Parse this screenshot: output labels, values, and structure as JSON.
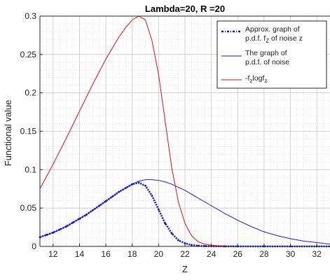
{
  "chart_data": {
    "type": "line",
    "title": "Lambda=20, R =20",
    "xlabel": "Z",
    "ylabel": "Functional value",
    "xlim": [
      11,
      33
    ],
    "ylim": [
      0,
      0.3
    ],
    "x_ticks": [
      12,
      14,
      16,
      18,
      20,
      22,
      24,
      26,
      28,
      30,
      32
    ],
    "y_ticks": [
      0,
      0.05,
      0.1,
      0.15,
      0.2,
      0.25,
      0.3
    ],
    "x_tick_labels": [
      "12",
      "14",
      "16",
      "18",
      "20",
      "22",
      "24",
      "26",
      "28",
      "30",
      "32"
    ],
    "y_tick_labels": [
      "0",
      "0.05",
      "0.1",
      "0.15",
      "0.2",
      "0.25",
      "0.3"
    ],
    "grid": true,
    "minor_grid": true,
    "legend_position": "top-right",
    "series": [
      {
        "name": "Approx. graph of p.d.f.  f_Z of noise z",
        "legend_lines": [
          "Approx. graph of",
          "p.d.f.  f",
          "Z",
          " of noise z"
        ],
        "color": "#1010d0",
        "style": "dash-dot-points",
        "x": [
          11,
          11.5,
          12,
          12.5,
          13,
          13.5,
          14,
          14.5,
          15,
          15.5,
          16,
          16.5,
          17,
          17.5,
          18,
          18.5,
          19,
          19.5,
          20,
          20.5,
          21,
          21.5,
          22,
          22.5,
          23,
          23.5,
          24,
          25,
          26,
          28,
          30,
          32,
          33
        ],
        "y": [
          0.012,
          0.015,
          0.018,
          0.022,
          0.026,
          0.031,
          0.036,
          0.041,
          0.047,
          0.053,
          0.059,
          0.065,
          0.071,
          0.076,
          0.081,
          0.083,
          0.079,
          0.066,
          0.048,
          0.03,
          0.017,
          0.008,
          0.004,
          0.0018,
          0.0008,
          0.0004,
          0.0002,
          0.0001,
          0,
          0,
          0,
          0,
          0
        ]
      },
      {
        "name": "The graph of p.d.f. of noise",
        "legend_lines": [
          "The graph of",
          "p.d.f. of noise"
        ],
        "color": "#1a1ad6",
        "style": "solid",
        "x": [
          11,
          12,
          13,
          14,
          15,
          16,
          17,
          18,
          18.5,
          19,
          19.5,
          20,
          20.5,
          21,
          22,
          23,
          24,
          25,
          26,
          27,
          28,
          29,
          30,
          31,
          32,
          33
        ],
        "y": [
          0.012,
          0.018,
          0.026,
          0.036,
          0.047,
          0.059,
          0.071,
          0.081,
          0.085,
          0.087,
          0.087,
          0.086,
          0.084,
          0.081,
          0.073,
          0.063,
          0.053,
          0.043,
          0.034,
          0.026,
          0.019,
          0.014,
          0.01,
          0.007,
          0.005,
          0.003
        ]
      },
      {
        "name": "-f_z logf_z",
        "legend_lines": [
          "-f",
          "z",
          "logf",
          "z"
        ],
        "color": "#dd1111",
        "style": "solid",
        "x": [
          11,
          12,
          13,
          14,
          15,
          16,
          17,
          17.5,
          18,
          18.5,
          19,
          19.5,
          20,
          20.5,
          21,
          21.5,
          22,
          22.5,
          23,
          23.5,
          24,
          25,
          26,
          28,
          30,
          32,
          33
        ],
        "y": [
          0.075,
          0.107,
          0.141,
          0.176,
          0.211,
          0.244,
          0.273,
          0.285,
          0.295,
          0.3,
          0.295,
          0.268,
          0.224,
          0.163,
          0.102,
          0.058,
          0.03,
          0.014,
          0.006,
          0.003,
          0.0015,
          0.0005,
          0,
          0,
          0,
          0,
          0
        ]
      }
    ]
  }
}
